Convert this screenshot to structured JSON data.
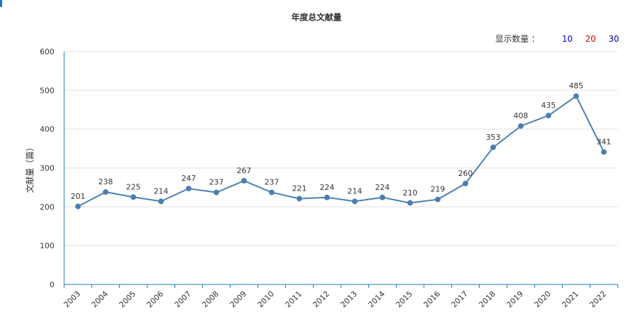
{
  "chart_data": {
    "type": "line",
    "title": "年度总文献量",
    "ylabel": "文献量（篇）",
    "xlabel": "",
    "categories": [
      "2003",
      "2004",
      "2005",
      "2006",
      "2007",
      "2008",
      "2009",
      "2010",
      "2011",
      "2012",
      "2013",
      "2014",
      "2015",
      "2016",
      "2017",
      "2018",
      "2019",
      "2020",
      "2021",
      "2022"
    ],
    "series": [
      {
        "values": [
          201,
          238,
          225,
          214,
          247,
          237,
          267,
          237,
          221,
          224,
          214,
          224,
          210,
          219,
          260,
          353,
          408,
          435,
          485,
          341
        ]
      }
    ],
    "ylim": [
      0,
      600
    ],
    "yticks": [
      "0",
      "100",
      "200",
      "300",
      "400",
      "500",
      "600"
    ],
    "grid": true,
    "legend": "none",
    "line_color": "#4a7fb0",
    "axis_color": "#1a73c8"
  },
  "display_count": {
    "label": "显示数量 ：",
    "options": [
      {
        "label": "10",
        "color": "#0000cc"
      },
      {
        "label": "20",
        "color": "#cc0000"
      },
      {
        "label": "30",
        "color": "#000099"
      }
    ]
  }
}
